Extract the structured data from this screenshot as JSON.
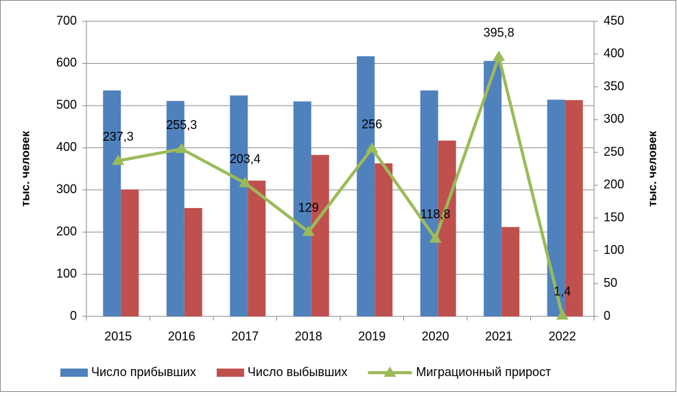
{
  "chart_data": {
    "type": "bar-line",
    "y_label": "тыс. человек",
    "y2_label": "тыс. человек",
    "categories": [
      "2015",
      "2016",
      "2017",
      "2018",
      "2019",
      "2020",
      "2021",
      "2022"
    ],
    "series": [
      {
        "name": "Число прибывших",
        "color": "#4f81bd",
        "type": "bar",
        "values": [
          536,
          511,
          524,
          510,
          617,
          536,
          606,
          514
        ]
      },
      {
        "name": "Число выбывших",
        "color": "#c0504d",
        "type": "bar",
        "values": [
          301,
          257,
          322,
          383,
          363,
          417,
          212,
          513
        ]
      },
      {
        "name": "Миграционный прирост",
        "color": "#9bbb59",
        "type": "line",
        "axis": "y2",
        "values": [
          237.3,
          255.3,
          203.4,
          129,
          256,
          118.8,
          395.8,
          1.4
        ],
        "value_labels": [
          "237,3",
          "255,3",
          "203,4",
          "129",
          "256",
          "118,8",
          "395,8",
          "1,4"
        ]
      }
    ],
    "ylim": [
      0,
      700
    ],
    "yticks": [
      0,
      100,
      200,
      300,
      400,
      500,
      600,
      700
    ],
    "y2lim": [
      0,
      450
    ],
    "y2ticks": [
      0,
      50,
      100,
      150,
      200,
      250,
      300,
      350,
      400,
      450
    ],
    "grid": true,
    "legend": "bottom"
  }
}
